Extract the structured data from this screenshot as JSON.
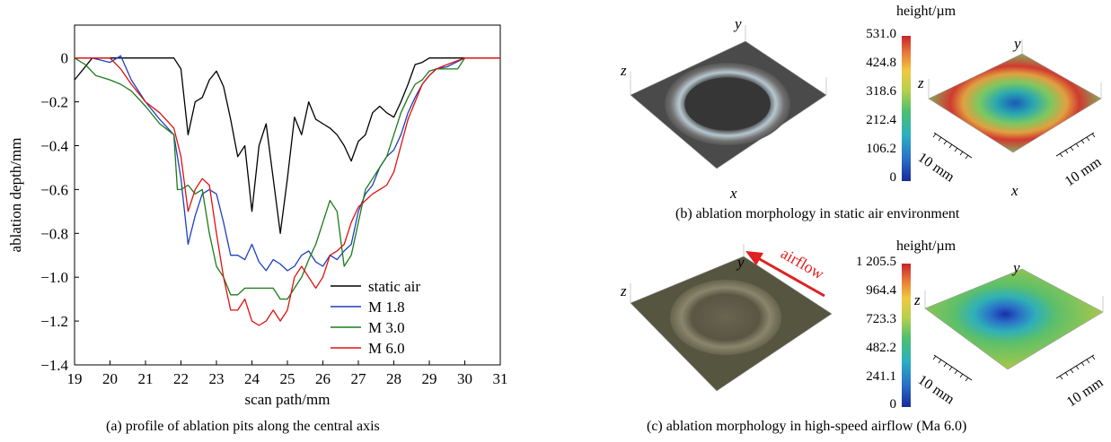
{
  "panel_a": {
    "caption": "(a) profile of ablation pits along the central axis"
  },
  "panel_b": {
    "caption": "(b) ablation morphology in static air environment",
    "colorbar_title": "height/µm",
    "colorbar_ticks": [
      "531.0",
      "424.8",
      "318.6",
      "212.4",
      "106.2",
      "0"
    ],
    "axis_labels": {
      "x": "x",
      "y": "y",
      "z": "z"
    },
    "scale_label": "10 mm"
  },
  "panel_c": {
    "caption": "(c) ablation morphology in high-speed airflow (Ma 6.0)",
    "colorbar_title": "height/µm",
    "colorbar_ticks": [
      "1 205.5",
      "964.4",
      "723.3",
      "482.2",
      "241.1",
      "0"
    ],
    "axis_labels": {
      "x": "x",
      "y": "y",
      "z": "z"
    },
    "scale_label": "10 mm",
    "airflow_label": "airflow"
  },
  "colors": {
    "static_air": "#000000",
    "M1_8": "#1f3fbf",
    "M3_0": "#1a7a1a",
    "M6_0": "#e01010",
    "airflow_arrow": "#e02020"
  },
  "chart_data": {
    "type": "line",
    "xlabel": "scan path/mm",
    "ylabel": "ablation depth/mm",
    "xlim": [
      19,
      31
    ],
    "ylim": [
      -1.4,
      0.15
    ],
    "xticks": [
      19,
      20,
      21,
      22,
      23,
      24,
      25,
      26,
      27,
      28,
      29,
      30,
      31
    ],
    "yticks": [
      0,
      -0.2,
      -0.4,
      -0.6,
      -0.8,
      -1.0,
      -1.2,
      -1.4
    ],
    "ytick_labels": [
      "0",
      "−0.2",
      "−0.4",
      "−0.6",
      "−0.8",
      "−1.0",
      "−1.2",
      "−1.4"
    ],
    "legend_position": "bottom-right",
    "series": [
      {
        "name": "static air",
        "color": "#000000",
        "x": [
          19.0,
          19.5,
          20.0,
          20.5,
          21.0,
          21.5,
          21.8,
          22.0,
          22.2,
          22.4,
          22.6,
          22.8,
          23.0,
          23.2,
          23.4,
          23.6,
          23.8,
          24.0,
          24.2,
          24.4,
          24.6,
          24.8,
          25.0,
          25.2,
          25.4,
          25.6,
          25.8,
          26.0,
          26.2,
          26.4,
          26.6,
          26.8,
          27.0,
          27.2,
          27.4,
          27.6,
          27.8,
          28.0,
          28.2,
          28.4,
          28.6,
          28.8,
          29.0,
          29.2,
          29.5,
          30.0,
          30.5,
          31.0
        ],
        "y": [
          -0.1,
          0.0,
          0.0,
          0.0,
          0.0,
          0.0,
          0.0,
          -0.05,
          -0.35,
          -0.2,
          -0.18,
          -0.1,
          -0.06,
          -0.13,
          -0.28,
          -0.45,
          -0.4,
          -0.7,
          -0.4,
          -0.3,
          -0.55,
          -0.8,
          -0.55,
          -0.27,
          -0.35,
          -0.2,
          -0.28,
          -0.3,
          -0.32,
          -0.35,
          -0.4,
          -0.47,
          -0.38,
          -0.35,
          -0.25,
          -0.22,
          -0.25,
          -0.27,
          -0.2,
          -0.12,
          -0.03,
          -0.02,
          0.0,
          0.0,
          0.0,
          0.0,
          0.0,
          0.0
        ]
      },
      {
        "name": "M 1.8",
        "color": "#1f3fbf",
        "x": [
          19.0,
          19.5,
          20.0,
          20.3,
          20.6,
          21.0,
          21.4,
          21.8,
          22.0,
          22.2,
          22.4,
          22.6,
          22.8,
          23.0,
          23.2,
          23.4,
          23.6,
          23.8,
          24.0,
          24.2,
          24.4,
          24.6,
          24.8,
          25.0,
          25.2,
          25.4,
          25.6,
          25.8,
          26.0,
          26.2,
          26.4,
          26.6,
          26.8,
          27.0,
          27.2,
          27.4,
          27.6,
          27.8,
          28.0,
          28.2,
          28.4,
          28.6,
          28.8,
          29.0,
          29.2,
          29.5,
          30.0,
          30.5,
          31.0
        ],
        "y": [
          0.0,
          0.0,
          -0.02,
          0.01,
          -0.1,
          -0.2,
          -0.28,
          -0.35,
          -0.55,
          -0.85,
          -0.72,
          -0.62,
          -0.6,
          -0.62,
          -0.75,
          -0.9,
          -0.9,
          -0.92,
          -0.85,
          -0.93,
          -0.97,
          -0.92,
          -0.94,
          -0.97,
          -0.95,
          -0.9,
          -0.88,
          -0.93,
          -0.95,
          -0.9,
          -0.92,
          -0.88,
          -0.85,
          -0.7,
          -0.62,
          -0.58,
          -0.5,
          -0.45,
          -0.42,
          -0.35,
          -0.25,
          -0.18,
          -0.12,
          -0.08,
          -0.05,
          -0.04,
          0.0,
          0.0,
          0.0
        ]
      },
      {
        "name": "M 3.0",
        "color": "#1a7a1a",
        "x": [
          19.0,
          19.3,
          19.6,
          20.0,
          20.3,
          20.6,
          21.0,
          21.4,
          21.8,
          21.9,
          22.0,
          22.2,
          22.4,
          22.6,
          22.8,
          23.0,
          23.2,
          23.4,
          23.6,
          23.8,
          24.0,
          24.2,
          24.4,
          24.6,
          24.8,
          25.0,
          25.2,
          25.4,
          25.6,
          25.8,
          26.0,
          26.2,
          26.4,
          26.6,
          26.8,
          27.0,
          27.2,
          27.4,
          27.6,
          27.8,
          28.0,
          28.2,
          28.4,
          28.6,
          28.8,
          29.0,
          29.2,
          29.5,
          29.8,
          30.0,
          30.5,
          31.0
        ],
        "y": [
          0.0,
          -0.03,
          -0.08,
          -0.1,
          -0.12,
          -0.15,
          -0.22,
          -0.3,
          -0.35,
          -0.6,
          -0.6,
          -0.58,
          -0.62,
          -0.6,
          -0.8,
          -0.95,
          -1.0,
          -1.08,
          -1.08,
          -1.05,
          -1.05,
          -1.05,
          -1.05,
          -1.05,
          -1.1,
          -1.1,
          -1.05,
          -1.0,
          -0.92,
          -0.85,
          -0.75,
          -0.65,
          -0.7,
          -0.95,
          -0.9,
          -0.75,
          -0.6,
          -0.55,
          -0.5,
          -0.45,
          -0.35,
          -0.25,
          -0.18,
          -0.12,
          -0.1,
          -0.06,
          -0.05,
          -0.05,
          -0.05,
          0.0,
          0.0,
          0.0
        ]
      },
      {
        "name": "M 6.0",
        "color": "#e01010",
        "x": [
          19.0,
          19.5,
          20.0,
          20.3,
          20.6,
          21.0,
          21.4,
          21.8,
          22.0,
          22.2,
          22.4,
          22.6,
          22.8,
          23.0,
          23.2,
          23.4,
          23.6,
          23.8,
          24.0,
          24.2,
          24.4,
          24.6,
          24.8,
          25.0,
          25.2,
          25.4,
          25.6,
          25.8,
          26.0,
          26.2,
          26.4,
          26.6,
          26.8,
          27.0,
          27.2,
          27.4,
          27.6,
          27.8,
          28.0,
          28.2,
          28.4,
          28.6,
          28.8,
          29.0,
          29.2,
          29.5,
          30.0,
          30.5,
          31.0
        ],
        "y": [
          0.0,
          0.0,
          0.0,
          -0.05,
          -0.12,
          -0.2,
          -0.25,
          -0.32,
          -0.45,
          -0.7,
          -0.6,
          -0.55,
          -0.58,
          -0.8,
          -1.0,
          -1.15,
          -1.15,
          -1.1,
          -1.2,
          -1.22,
          -1.2,
          -1.15,
          -1.2,
          -1.15,
          -1.0,
          -0.95,
          -1.0,
          -1.05,
          -1.0,
          -0.9,
          -0.88,
          -0.85,
          -0.75,
          -0.68,
          -0.65,
          -0.62,
          -0.6,
          -0.58,
          -0.52,
          -0.4,
          -0.28,
          -0.2,
          -0.12,
          -0.08,
          -0.05,
          -0.03,
          0.0,
          0.0,
          0.0
        ]
      }
    ]
  }
}
